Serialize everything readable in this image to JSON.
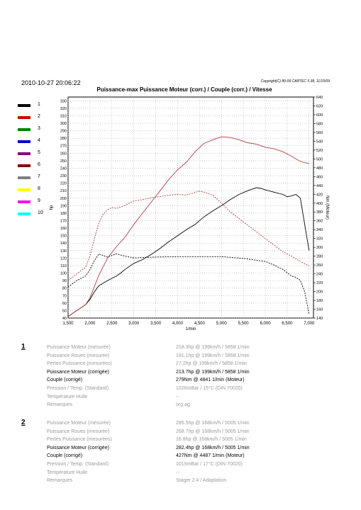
{
  "header": {
    "date": "2010-10-27 20:06:22",
    "copyright": "Copyright(C) 89-09 CARTEC 5.38, 11/15/09",
    "title": "Puissance-max Puissance Moteur (corr.) / Couple (corr.) / Vitesse"
  },
  "legend": [
    {
      "label": "1",
      "color": "#000000"
    },
    {
      "label": "2",
      "color": "#cc0000"
    },
    {
      "label": "3",
      "color": "#008000"
    },
    {
      "label": "4",
      "color": "#0000cc"
    },
    {
      "label": "5",
      "color": "#800080"
    },
    {
      "label": "6",
      "color": "#800000"
    },
    {
      "label": "7",
      "color": "#808080"
    },
    {
      "label": "8",
      "color": "#ffff00"
    },
    {
      "label": "9",
      "color": "#ff00ff"
    },
    {
      "label": "10",
      "color": "#00ffff"
    }
  ],
  "chart_data": {
    "type": "line",
    "title": "Puissance-max Puissance Moteur (corr.) / Couple (corr.) / Vitesse",
    "xlabel": "1/min",
    "ylabel_left": "hp",
    "ylabel_right": "Nm (Moteur)",
    "xlim": [
      1500,
      7100
    ],
    "ylim_left": [
      40,
      335
    ],
    "ylim_right": [
      140,
      640
    ],
    "x_ticks": [
      1500,
      2000,
      2500,
      3000,
      3500,
      4000,
      4500,
      5000,
      5500,
      6000,
      6500,
      7000
    ],
    "x_tick_labels": [
      "1,500",
      "2,000",
      "2,500",
      "3,000",
      "3,500",
      "4,000",
      "4,500",
      "5,000",
      "5,500",
      "6,000",
      "6,500",
      "7,000"
    ],
    "y_left_ticks": [
      40,
      50,
      60,
      70,
      80,
      90,
      100,
      110,
      120,
      130,
      140,
      150,
      160,
      170,
      180,
      190,
      200,
      210,
      220,
      230,
      240,
      250,
      260,
      270,
      280,
      290,
      300,
      310,
      320,
      330
    ],
    "y_right_ticks": [
      140,
      160,
      180,
      200,
      220,
      240,
      260,
      280,
      300,
      320,
      340,
      360,
      380,
      400,
      420,
      440,
      460,
      480,
      500,
      520,
      540,
      560,
      580,
      600,
      620,
      640
    ],
    "grid": true,
    "series": [
      {
        "name": "1",
        "metric": "Puissance Moteur (corrigée)",
        "axis": "left",
        "color": "#000000",
        "dash": false,
        "x": [
          1500,
          1700,
          1900,
          2000,
          2100,
          2200,
          2400,
          2600,
          2700,
          2800,
          3000,
          3200,
          3400,
          3600,
          3800,
          4000,
          4200,
          4400,
          4600,
          4800,
          5000,
          5200,
          5400,
          5600,
          5800,
          5900,
          6000,
          6200,
          6400,
          6500,
          6600,
          6700,
          6800,
          6900,
          7000
        ],
        "y": [
          42,
          50,
          58,
          65,
          75,
          83,
          90,
          96,
          100,
          105,
          113,
          118,
          125,
          133,
          142,
          150,
          158,
          165,
          175,
          183,
          190,
          198,
          205,
          210,
          214,
          213,
          211,
          208,
          205,
          202,
          203,
          205,
          200,
          165,
          130
        ]
      },
      {
        "name": "1",
        "metric": "Couple (corrigé)",
        "axis": "right",
        "color": "#000000",
        "dash": true,
        "x": [
          1500,
          1700,
          1900,
          2000,
          2100,
          2200,
          2400,
          2600,
          2800,
          3000,
          3500,
          4000,
          4500,
          4841,
          5000,
          5500,
          6000,
          6200,
          6400,
          6600,
          6700,
          6800,
          6900,
          7000
        ],
        "y": [
          210,
          225,
          235,
          250,
          270,
          285,
          278,
          285,
          280,
          276,
          278,
          279,
          279,
          279,
          279,
          275,
          268,
          260,
          250,
          235,
          232,
          225,
          200,
          148
        ]
      },
      {
        "name": "2",
        "metric": "Puissance Moteur (corrigée)",
        "axis": "left",
        "color": "#b04040",
        "dash": false,
        "x": [
          1500,
          1700,
          1900,
          2000,
          2100,
          2200,
          2400,
          2600,
          2800,
          3000,
          3200,
          3400,
          3600,
          3800,
          4000,
          4200,
          4400,
          4600,
          4800,
          5005,
          5200,
          5400,
          5600,
          5800,
          6000,
          6200,
          6400,
          6600,
          6800,
          7000
        ],
        "y": [
          42,
          50,
          58,
          67,
          82,
          97,
          120,
          135,
          148,
          165,
          180,
          195,
          210,
          225,
          238,
          248,
          262,
          273,
          278,
          282,
          281,
          278,
          274,
          272,
          268,
          266,
          262,
          256,
          249,
          246
        ]
      },
      {
        "name": "2",
        "metric": "Couple (corrigé)",
        "axis": "right",
        "color": "#b04040",
        "dash": true,
        "x": [
          1500,
          1700,
          1900,
          2000,
          2100,
          2200,
          2300,
          2400,
          2500,
          2600,
          2800,
          3000,
          3200,
          3400,
          3600,
          3800,
          4000,
          4200,
          4487,
          4600,
          4800,
          5000,
          5200,
          5400,
          5600,
          5800,
          6000,
          6200,
          6400,
          6600,
          6800,
          7000
        ],
        "y": [
          225,
          240,
          255,
          280,
          320,
          355,
          375,
          385,
          390,
          388,
          395,
          405,
          408,
          412,
          415,
          418,
          420,
          418,
          427,
          425,
          418,
          400,
          380,
          365,
          350,
          335,
          320,
          305,
          290,
          280,
          268,
          258
        ]
      }
    ]
  },
  "runs": [
    {
      "number": "1",
      "rows": [
        {
          "label": "Puissance Moteur (mesurée)",
          "value": "218.3hp @ 199km/h / 5858 1/min",
          "emph": false
        },
        {
          "label": "Puissance Roues (mesurée)",
          "value": "191.1hp @ 199km/h / 5858 1/min",
          "emph": false
        },
        {
          "label": "Pertes Puissance (mesurées)",
          "value": "27.2hp @ 199km/h / 5858 1/min",
          "emph": false
        },
        {
          "label": "Puissance Moteur (corrigée)",
          "value": "213.7hp @ 199km/h / 5858 1/min",
          "emph": true
        },
        {
          "label": "Couple (corrigé)",
          "value": "279Nm @ 4841 1/min (Moteur)",
          "emph": true
        },
        {
          "label": "Pression / Temp. (Standard)",
          "value": "1026mBar / 15°C   (DIN 70020)",
          "emph": false
        },
        {
          "label": "Température Huile",
          "value": "--",
          "emph": false
        },
        {
          "label": "Remarques",
          "value": "org ag",
          "emph": false
        }
      ]
    },
    {
      "number": "2",
      "rows": [
        {
          "label": "Puissance Moteur (mesurée)",
          "value": "285.5hp @ 168km/h / 5005 1/min",
          "emph": false
        },
        {
          "label": "Puissance Roues (mesurée)",
          "value": "268.7hp @ 168km/h / 5005 1/min",
          "emph": false
        },
        {
          "label": "Pertes Puissance (mesurées)",
          "value": "16.8hp @ 168km/h / 5005 1/min",
          "emph": false
        },
        {
          "label": "Puissance Moteur (corrigée)",
          "value": "282.4hp @ 168km/h / 5005 1/min",
          "emph": true
        },
        {
          "label": "Couple (corrigé)",
          "value": "427Nm @ 4487 1/min (Moteur)",
          "emph": true
        },
        {
          "label": "Pression / Temp. (Standard)",
          "value": "1019mBar / 17°C   (DIN 70020)",
          "emph": false
        },
        {
          "label": "Température Huile",
          "value": "--",
          "emph": false
        },
        {
          "label": "Remarques",
          "value": "Stager 2.4 / Adaptation",
          "emph": false
        }
      ]
    }
  ]
}
